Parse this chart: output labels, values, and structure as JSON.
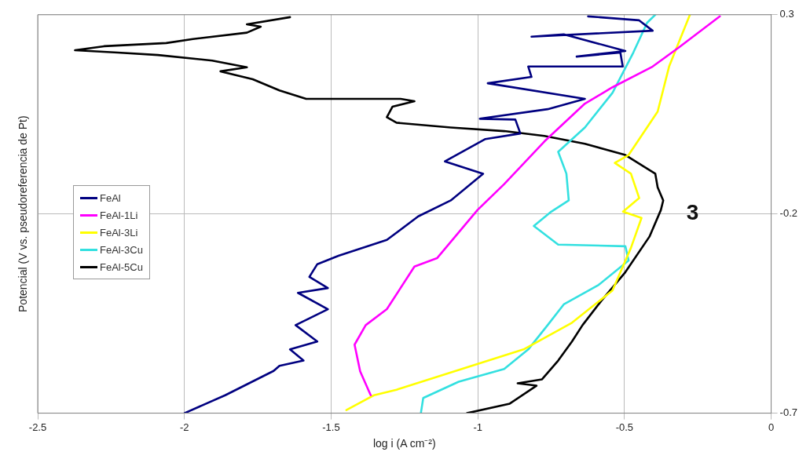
{
  "chart_data": {
    "type": "line",
    "xlabel": "log i (A cm⁻²)",
    "ylabel": "Potencial (V vs. pseudoreferencia de Pt)",
    "xlim": [
      -2.5,
      0
    ],
    "xticks": [
      -2.5,
      -2,
      -1.5,
      -1,
      -0.5,
      0
    ],
    "ylim": [
      -0.7,
      0.3
    ],
    "yticks": [
      -0.7,
      -0.2,
      0.3
    ],
    "grid": true,
    "legend": "left",
    "marker": "none",
    "line_style": "solid",
    "annotations": [
      "3"
    ],
    "series": [
      {
        "name": "FeAl",
        "color": "#000080",
        "x": [
          -2.0,
          -1.861,
          -1.696,
          -1.676,
          -1.594,
          -1.64,
          -1.547,
          -1.621,
          -1.511,
          -1.613,
          -1.511,
          -1.574,
          -1.547,
          -1.475,
          -1.31,
          -1.203,
          -1.092,
          -0.982,
          -1.112,
          -0.974,
          -0.855,
          -0.872,
          -0.993,
          -0.762,
          -0.635,
          -0.966,
          -0.817,
          -0.828,
          -0.506,
          -0.514,
          -0.663,
          -0.497,
          -0.707,
          -0.817,
          -0.404,
          -0.45,
          -0.624
        ],
        "values": [
          -0.7,
          -0.655,
          -0.594,
          -0.581,
          -0.568,
          -0.54,
          -0.52,
          -0.479,
          -0.439,
          -0.398,
          -0.386,
          -0.358,
          -0.326,
          -0.305,
          -0.265,
          -0.206,
          -0.166,
          -0.099,
          -0.068,
          -0.012,
          0.002,
          0.037,
          0.039,
          0.063,
          0.089,
          0.128,
          0.144,
          0.17,
          0.17,
          0.205,
          0.195,
          0.209,
          0.251,
          0.245,
          0.26,
          0.286,
          0.296
        ]
      },
      {
        "name": "FeAl-1Li",
        "color": "#ff00ff",
        "x": [
          -1.365,
          -1.401,
          -1.42,
          -1.382,
          -1.31,
          -1.216,
          -1.139,
          -1.001,
          -0.91,
          -0.773,
          -0.635,
          -0.541,
          -0.404,
          -0.313,
          -0.175
        ],
        "values": [
          -0.655,
          -0.595,
          -0.528,
          -0.479,
          -0.439,
          -0.332,
          -0.311,
          -0.19,
          -0.125,
          -0.018,
          0.077,
          0.118,
          0.17,
          0.219,
          0.296
        ]
      },
      {
        "name": "FeAl-3Li",
        "color": "#ffff00",
        "x": [
          -1.448,
          -1.354,
          -1.277,
          -0.844,
          -0.679,
          -0.541,
          -0.478,
          -0.442,
          -0.505,
          -0.45,
          -0.478,
          -0.533,
          -0.486,
          -0.387,
          -0.348,
          -0.277
        ],
        "values": [
          -0.692,
          -0.655,
          -0.641,
          -0.54,
          -0.473,
          -0.392,
          -0.285,
          -0.21,
          -0.194,
          -0.16,
          -0.099,
          -0.072,
          -0.052,
          0.057,
          0.17,
          0.3
        ]
      },
      {
        "name": "FeAl-3Cu",
        "color": "#33e0e0",
        "x": [
          -1.194,
          -1.186,
          -1.065,
          -0.91,
          -0.828,
          -0.762,
          -0.707,
          -0.588,
          -0.486,
          -0.497,
          -0.726,
          -0.809,
          -0.753,
          -0.69,
          -0.698,
          -0.726,
          -0.635,
          -0.541,
          -0.47,
          -0.423,
          -0.395
        ],
        "values": [
          -0.7,
          -0.662,
          -0.621,
          -0.589,
          -0.54,
          -0.479,
          -0.427,
          -0.378,
          -0.317,
          -0.281,
          -0.277,
          -0.23,
          -0.196,
          -0.166,
          -0.099,
          -0.044,
          0.017,
          0.104,
          0.205,
          0.28,
          0.3
        ]
      },
      {
        "name": "FeAl-5Cu",
        "color": "#000000",
        "x": [
          -1.037,
          -0.891,
          -0.8,
          -0.864,
          -0.781,
          -0.726,
          -0.679,
          -0.643,
          -0.58,
          -0.497,
          -0.415,
          -0.376,
          -0.368,
          -0.387,
          -0.395,
          -0.497,
          -0.635,
          -0.773,
          -0.91,
          -1.092,
          -1.277,
          -1.31,
          -1.291,
          -1.216,
          -1.263,
          -1.585,
          -1.676,
          -1.767,
          -1.877,
          -1.787,
          -1.905,
          -2.09,
          -2.227,
          -2.373,
          -2.274,
          -2.062,
          -1.971,
          -1.787,
          -1.74,
          -1.787,
          -1.64
        ],
        "values": [
          -0.7,
          -0.676,
          -0.631,
          -0.625,
          -0.615,
          -0.568,
          -0.52,
          -0.479,
          -0.419,
          -0.346,
          -0.257,
          -0.19,
          -0.166,
          -0.133,
          -0.099,
          -0.052,
          -0.024,
          -0.004,
          0.008,
          0.017,
          0.029,
          0.043,
          0.069,
          0.083,
          0.089,
          0.089,
          0.11,
          0.138,
          0.158,
          0.168,
          0.185,
          0.199,
          0.205,
          0.211,
          0.221,
          0.229,
          0.239,
          0.255,
          0.27,
          0.276,
          0.294
        ]
      }
    ]
  }
}
